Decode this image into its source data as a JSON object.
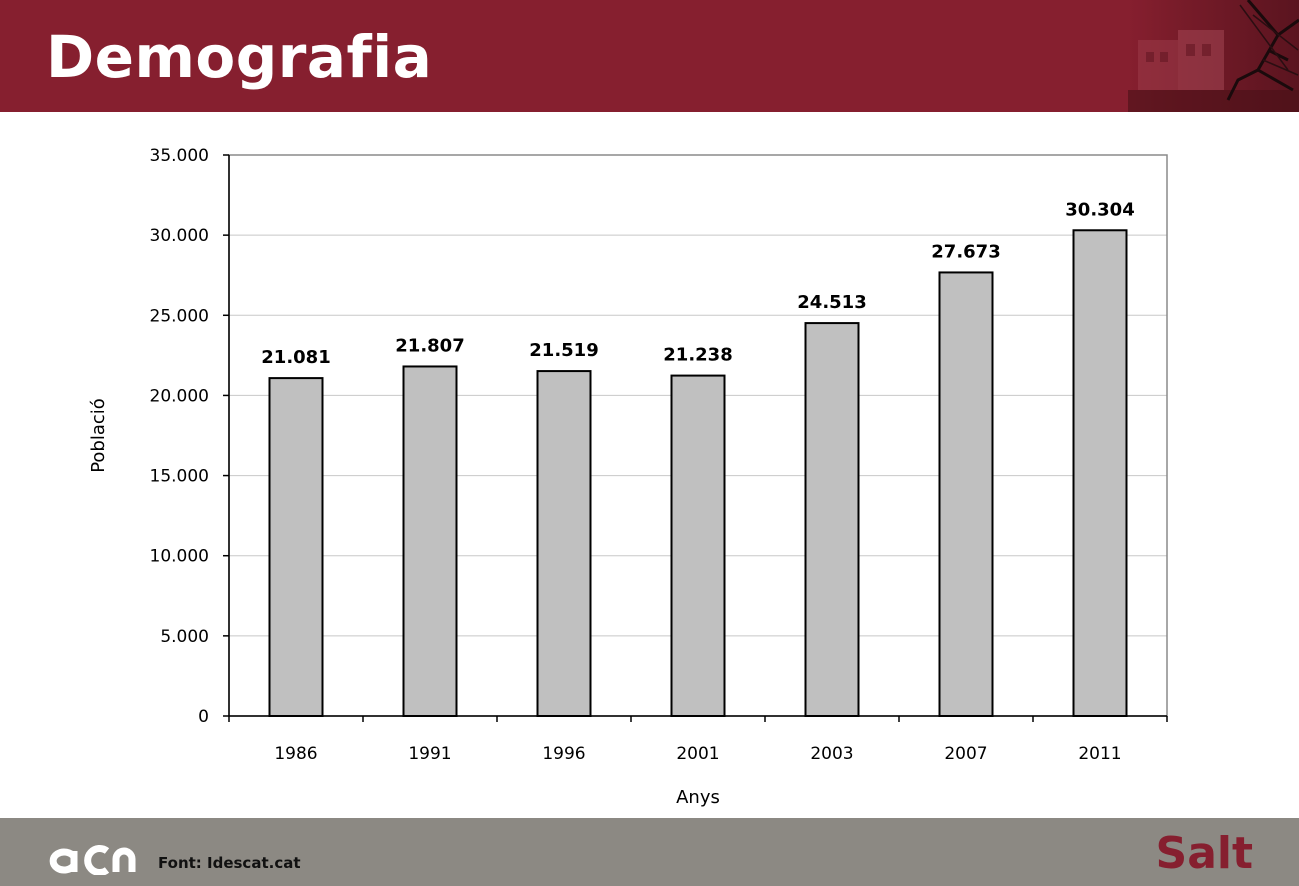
{
  "slide": {
    "title": "Demografia",
    "source": "Font: Idescat.cat",
    "brand": "Salt",
    "logo_text": "acn"
  },
  "colors": {
    "header_bg": "#861f2f",
    "footer_bg": "#8c8983",
    "bar_fill": "#c0c0c0",
    "bar_stroke": "#000000",
    "brand_text": "#861f2f"
  },
  "icons": {
    "logo": "acn-logo",
    "header_image": "town-photo-with-sculpture"
  },
  "chart_data": {
    "type": "bar",
    "categories": [
      "1986",
      "1991",
      "1996",
      "2001",
      "2003",
      "2007",
      "2011"
    ],
    "values": [
      21081,
      21807,
      21519,
      21238,
      24513,
      27673,
      30304
    ],
    "value_labels": [
      "21.081",
      "21.807",
      "21.519",
      "21.238",
      "24.513",
      "27.673",
      "30.304"
    ],
    "xlabel": "Anys",
    "ylabel": "Població",
    "ylim": [
      0,
      35000
    ],
    "yticks": [
      0,
      5000,
      10000,
      15000,
      20000,
      25000,
      30000,
      35000
    ],
    "ytick_labels": [
      "0",
      "5.000",
      "10.000",
      "15.000",
      "20.000",
      "25.000",
      "30.000",
      "35.000"
    ],
    "grid": true,
    "legend": "none"
  }
}
